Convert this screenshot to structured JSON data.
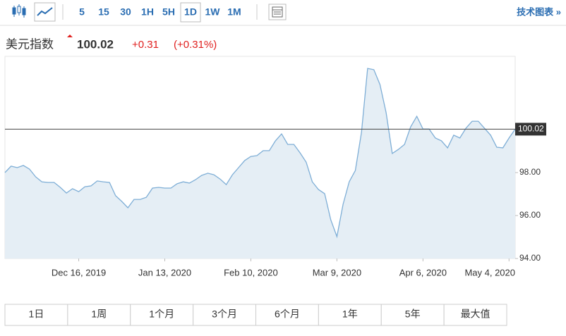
{
  "toolbar": {
    "intervals": [
      "5",
      "15",
      "30",
      "1H",
      "5H",
      "1D",
      "1W",
      "1M"
    ],
    "selected_index": 5,
    "technical_chart": "技术图表 »"
  },
  "quote": {
    "name": "美元指数",
    "price": 100.02,
    "change": "+0.31",
    "change_pct": "(+0.31%)"
  },
  "chart_data": {
    "type": "area",
    "x": [
      "2019-11-22",
      "2019-11-24",
      "2019-11-26",
      "2019-11-28",
      "2019-11-30",
      "2019-12-02",
      "2019-12-04",
      "2019-12-06",
      "2019-12-08",
      "2019-12-10",
      "2019-12-12",
      "2019-12-14",
      "2019-12-16",
      "2019-12-18",
      "2019-12-20",
      "2019-12-22",
      "2019-12-24",
      "2019-12-26",
      "2019-12-28",
      "2019-12-30",
      "2020-01-01",
      "2020-01-03",
      "2020-01-05",
      "2020-01-07",
      "2020-01-09",
      "2020-01-11",
      "2020-01-13",
      "2020-01-15",
      "2020-01-17",
      "2020-01-19",
      "2020-01-21",
      "2020-01-23",
      "2020-01-25",
      "2020-01-27",
      "2020-01-29",
      "2020-01-31",
      "2020-02-02",
      "2020-02-04",
      "2020-02-06",
      "2020-02-08",
      "2020-02-10",
      "2020-02-12",
      "2020-02-14",
      "2020-02-16",
      "2020-02-18",
      "2020-02-20",
      "2020-02-22",
      "2020-02-24",
      "2020-02-26",
      "2020-02-28",
      "2020-03-01",
      "2020-03-03",
      "2020-03-05",
      "2020-03-07",
      "2020-03-09",
      "2020-03-11",
      "2020-03-13",
      "2020-03-15",
      "2020-03-17",
      "2020-03-19",
      "2020-03-21",
      "2020-03-23",
      "2020-03-25",
      "2020-03-27",
      "2020-03-29",
      "2020-03-31",
      "2020-04-02",
      "2020-04-04",
      "2020-04-06",
      "2020-04-08",
      "2020-04-10",
      "2020-04-12",
      "2020-04-14",
      "2020-04-16",
      "2020-04-18",
      "2020-04-20",
      "2020-04-22",
      "2020-04-24",
      "2020-04-26",
      "2020-04-28",
      "2020-04-30",
      "2020-05-02",
      "2020-05-04",
      "2020-05-06"
    ],
    "values": [
      98.0,
      98.3,
      98.23,
      98.33,
      98.16,
      97.8,
      97.57,
      97.54,
      97.54,
      97.31,
      97.05,
      97.25,
      97.11,
      97.34,
      97.38,
      97.61,
      97.57,
      97.54,
      96.92,
      96.66,
      96.36,
      96.75,
      96.75,
      96.85,
      97.28,
      97.31,
      97.28,
      97.28,
      97.48,
      97.57,
      97.51,
      97.67,
      97.87,
      97.97,
      97.9,
      97.7,
      97.44,
      97.9,
      98.23,
      98.56,
      98.75,
      98.79,
      99.02,
      99.02,
      99.48,
      99.8,
      99.31,
      99.31,
      98.92,
      98.49,
      97.57,
      97.21,
      97.02,
      95.8,
      95.02,
      96.52,
      97.57,
      98.1,
      99.87,
      102.85,
      102.79,
      102.1,
      100.79,
      98.89,
      99.08,
      99.31,
      100.13,
      100.62,
      100.03,
      100.03,
      99.61,
      99.48,
      99.15,
      99.74,
      99.61,
      100.07,
      100.39,
      100.39,
      100.07,
      99.74,
      99.18,
      99.15,
      99.61,
      100.02
    ],
    "color": "#7eaed6",
    "fill_color": "#e5eef5",
    "ylim": [
      94,
      103.41
    ],
    "yticks": [
      {
        "value": 94,
        "label": "94.00"
      },
      {
        "value": 96,
        "label": "96.00"
      },
      {
        "value": 98,
        "label": "98.00"
      }
    ],
    "xlim": [
      "2019-11-22",
      "2020-05-06"
    ],
    "xticks": [
      {
        "value": "2019-12-16",
        "label": "Dec 16, 2019"
      },
      {
        "value": "2020-01-13",
        "label": "Jan 13, 2020"
      },
      {
        "value": "2020-02-10",
        "label": "Feb 10, 2020"
      },
      {
        "value": "2020-03-09",
        "label": "Mar 9, 2020"
      },
      {
        "value": "2020-04-06",
        "label": "Apr 6, 2020"
      },
      {
        "value": "2020-05-04",
        "label": "May 4, 2020"
      }
    ],
    "last_price": 100.02
  },
  "ranges": [
    "1日",
    "1周",
    "1个月",
    "3个月",
    "6个月",
    "1年",
    "5年",
    "最大值"
  ]
}
